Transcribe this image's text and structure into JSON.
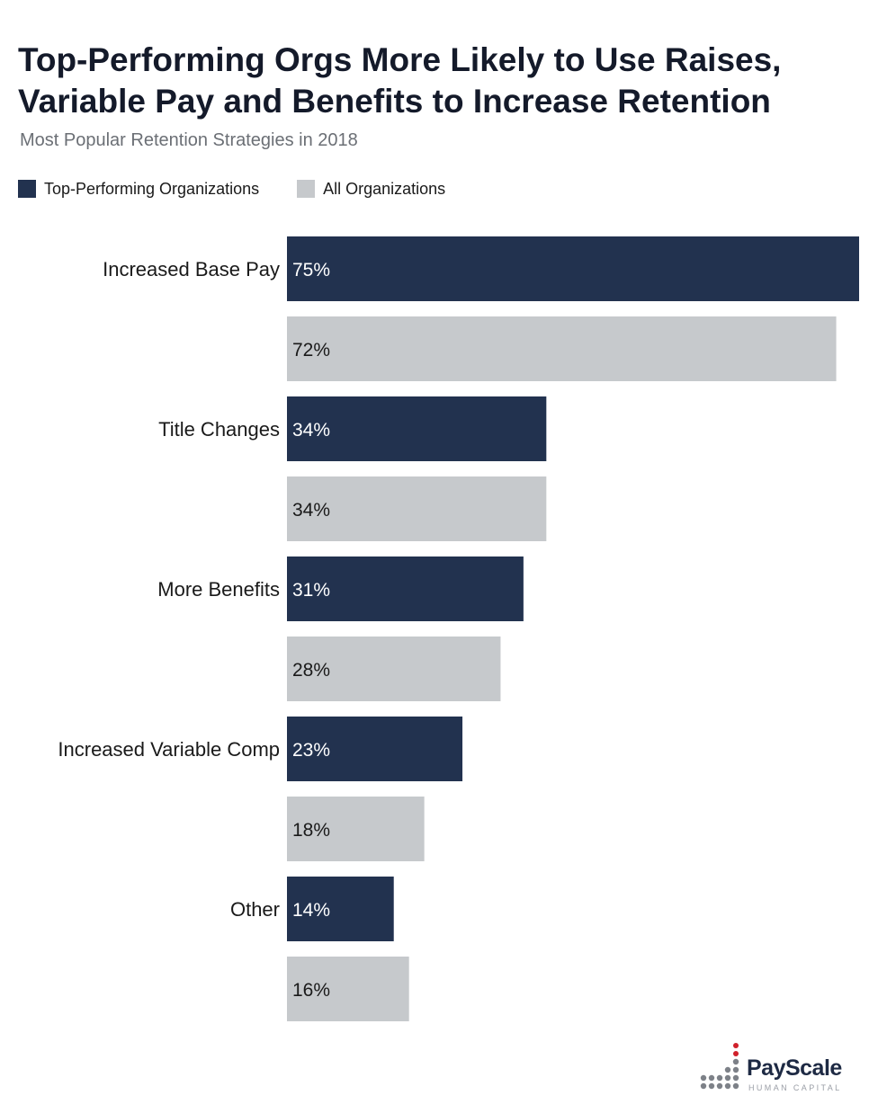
{
  "title": "Top-Performing Orgs More Likely to Use Raises, Variable Pay and Benefits to Increase Retention",
  "subtitle": "Most Popular Retention Strategies in 2018",
  "colors": {
    "top_performing": "#22324f",
    "all_orgs": "#c6c9cc",
    "value_on_dark": "#ffffff",
    "value_on_light": "#1a1a1a"
  },
  "logo": {
    "name": "PayScale",
    "tagline": "HUMAN CAPITAL",
    "accent": "#d0202b",
    "dots": "#7d8188"
  },
  "chart_data": {
    "type": "bar",
    "orientation": "horizontal",
    "categories": [
      "Increased Base Pay",
      "Title Changes",
      "More Benefits",
      "Increased Variable Comp",
      "Other"
    ],
    "series": [
      {
        "name": "Top-Performing Organizations",
        "values": [
          75,
          34,
          31,
          23,
          14
        ],
        "labels": [
          "75%",
          "34%",
          "31%",
          "23%",
          "14%"
        ]
      },
      {
        "name": "All Organizations",
        "values": [
          72,
          34,
          28,
          18,
          16
        ],
        "labels": [
          "72%",
          "34%",
          "28%",
          "18%",
          "16%"
        ]
      }
    ],
    "title": "Top-Performing Orgs More Likely to Use Raises, Variable Pay and Benefits to Increase Retention",
    "xlim": [
      0,
      75
    ],
    "grid": false,
    "legend": "top-left"
  }
}
